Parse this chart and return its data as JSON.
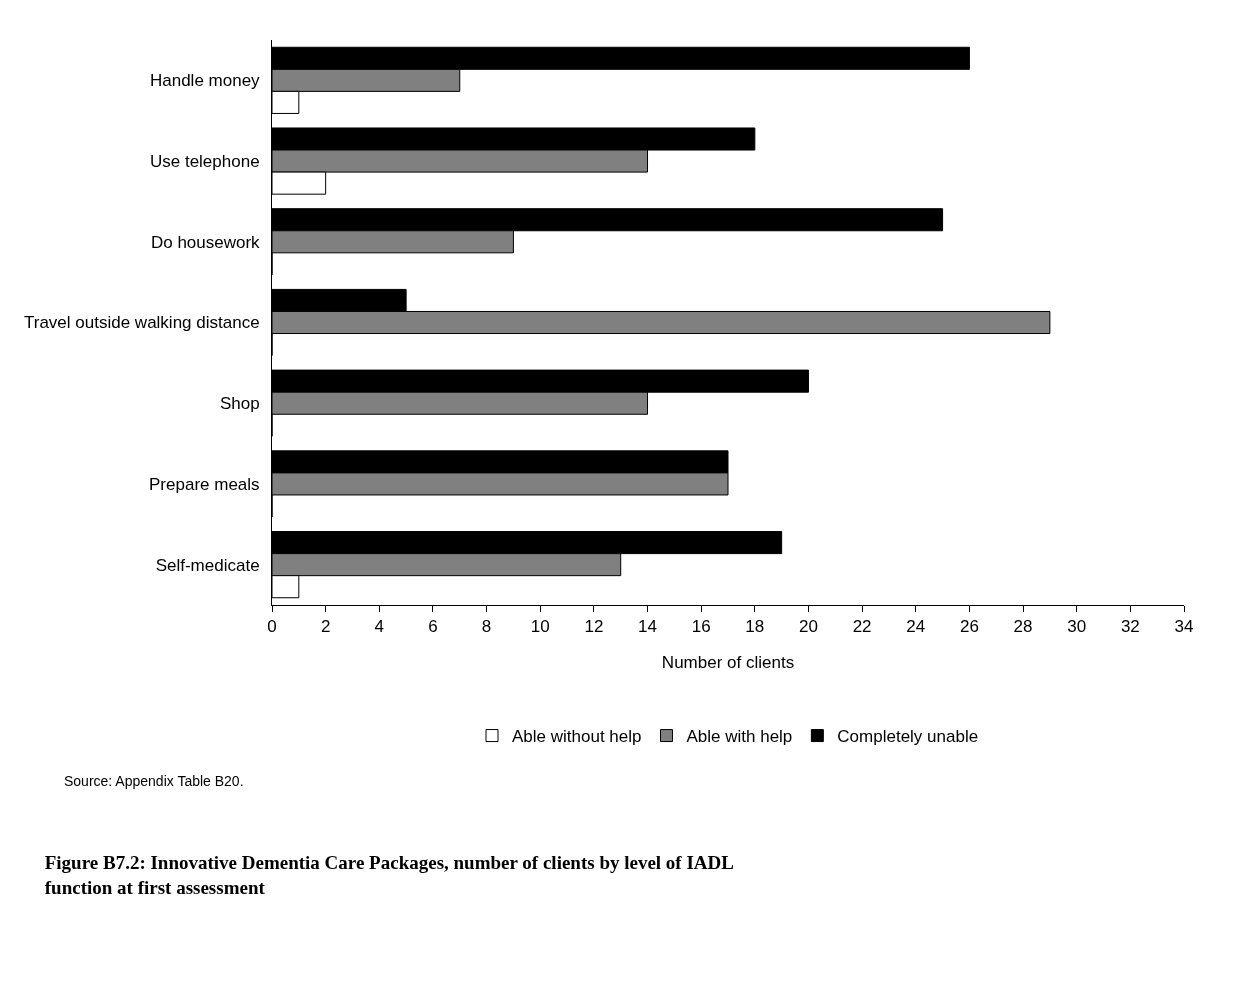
{
  "chart_data": {
    "type": "bar",
    "orientation": "horizontal",
    "title": "Figure B7.2: Innovative Dementia Care Packages, number of clients by level of IADL function at first assessment",
    "xlabel": "Number of clients",
    "annotations": [
      "Source: Appendix Table B20."
    ],
    "categories": [
      "Handle money",
      "Use telephone",
      "Do housework",
      "Travel outside walking distance",
      "Shop",
      "Prepare meals",
      "Self-medicate"
    ],
    "series": [
      {
        "name": "Able without help",
        "color": "#ffffff",
        "values": [
          1,
          2,
          0,
          0,
          0,
          0,
          1
        ]
      },
      {
        "name": "Able with help",
        "color": "#808080",
        "values": [
          7,
          14,
          9,
          29,
          14,
          17,
          13
        ]
      },
      {
        "name": "Completely unable",
        "color": "#000000",
        "values": [
          26,
          18,
          25,
          5,
          20,
          17,
          19
        ]
      }
    ],
    "xlim": [
      0,
      34
    ],
    "xticks": [
      0,
      2,
      4,
      6,
      8,
      10,
      12,
      14,
      16,
      18,
      20,
      22,
      24,
      26,
      28,
      30,
      32,
      34
    ],
    "grid": false,
    "legend": "bottom"
  }
}
